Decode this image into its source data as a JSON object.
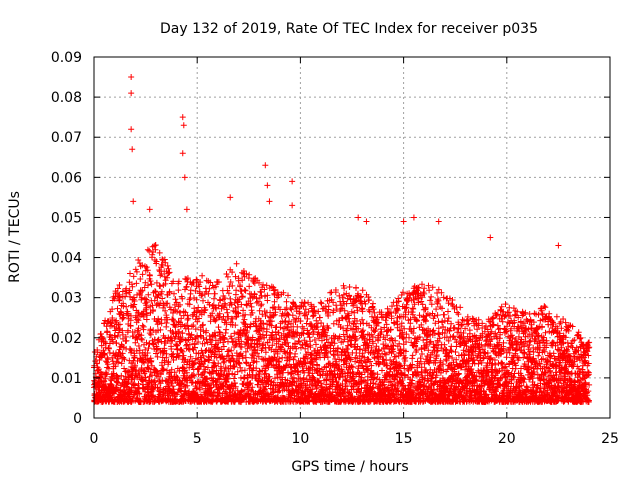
{
  "chart_data": {
    "type": "scatter",
    "title": "Day 132 of 2019, Rate Of TEC Index for receiver p035",
    "xlabel": "GPS time / hours",
    "ylabel": "ROTI / TECUs",
    "xlim": [
      0,
      25
    ],
    "ylim": [
      0,
      0.09
    ],
    "xticks": [
      0,
      5,
      10,
      15,
      20,
      25
    ],
    "xtick_labels": [
      "0",
      "5",
      "10",
      "15",
      "20",
      "25"
    ],
    "yticks": [
      0,
      0.01,
      0.02,
      0.03,
      0.04,
      0.05,
      0.06,
      0.07,
      0.08,
      0.09
    ],
    "ytick_labels": [
      "0",
      "0.01",
      "0.02",
      "0.03",
      "0.04",
      "0.05",
      "0.06",
      "0.07",
      "0.08",
      "0.09"
    ],
    "grid": true,
    "marker": "+",
    "series_color": "#ff0000",
    "series": [
      {
        "name": "ROTI",
        "x_range": [
          0,
          24
        ],
        "sample_interval_hours": 0.0167,
        "notable_peaks": [
          {
            "x": 1.8,
            "y": 0.085
          },
          {
            "x": 1.8,
            "y": 0.081
          },
          {
            "x": 1.8,
            "y": 0.072
          },
          {
            "x": 1.85,
            "y": 0.067
          },
          {
            "x": 1.9,
            "y": 0.054
          },
          {
            "x": 2.7,
            "y": 0.052
          },
          {
            "x": 4.3,
            "y": 0.075
          },
          {
            "x": 4.35,
            "y": 0.073
          },
          {
            "x": 4.3,
            "y": 0.066
          },
          {
            "x": 4.4,
            "y": 0.06
          },
          {
            "x": 4.5,
            "y": 0.052
          },
          {
            "x": 6.6,
            "y": 0.055
          },
          {
            "x": 8.3,
            "y": 0.063
          },
          {
            "x": 8.4,
            "y": 0.058
          },
          {
            "x": 8.5,
            "y": 0.054
          },
          {
            "x": 9.6,
            "y": 0.059
          },
          {
            "x": 9.6,
            "y": 0.053
          },
          {
            "x": 12.8,
            "y": 0.05
          },
          {
            "x": 13.2,
            "y": 0.049
          },
          {
            "x": 15.0,
            "y": 0.049
          },
          {
            "x": 15.5,
            "y": 0.05
          },
          {
            "x": 16.7,
            "y": 0.049
          },
          {
            "x": 19.2,
            "y": 0.045
          },
          {
            "x": 22.5,
            "y": 0.043
          }
        ],
        "typical_band": [
          0.002,
          0.03
        ]
      }
    ]
  }
}
